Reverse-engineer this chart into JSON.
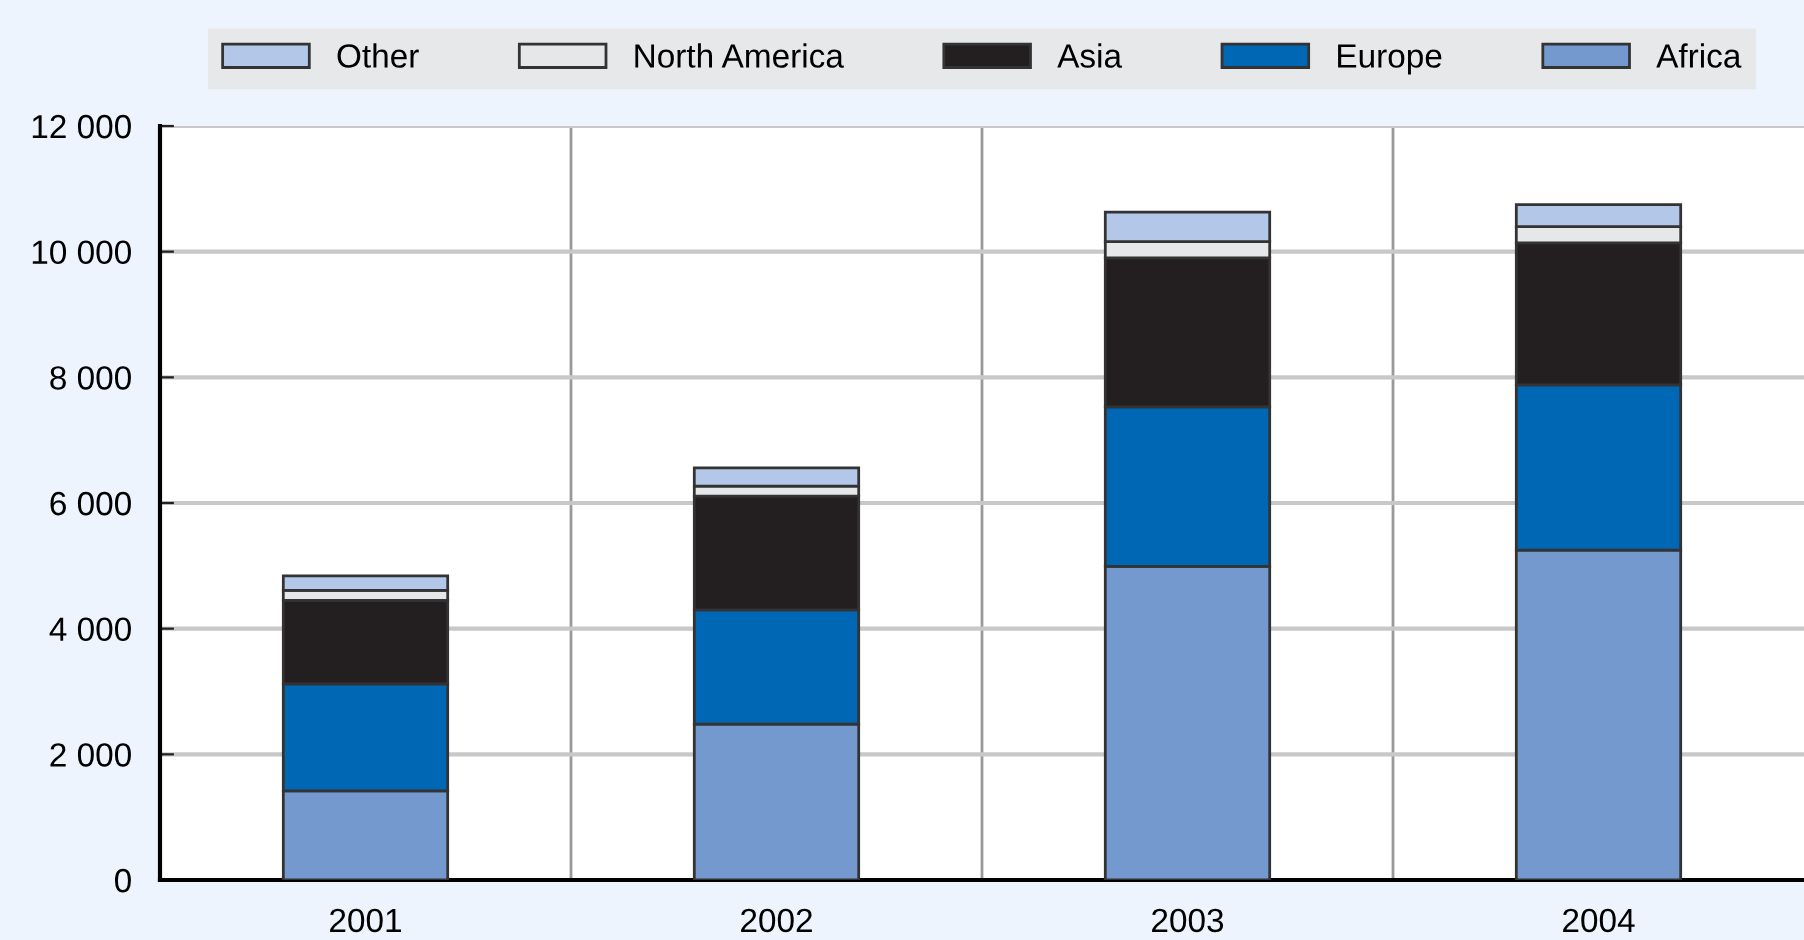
{
  "chart_data": {
    "type": "bar",
    "stacked": true,
    "categories": [
      "2001",
      "2002",
      "2003",
      "2004"
    ],
    "series": [
      {
        "name": "Africa",
        "color": "#7399cf",
        "values": [
          1420,
          2480,
          4990,
          5250
        ]
      },
      {
        "name": "Europe",
        "color": "#0067b4",
        "values": [
          1700,
          1820,
          2540,
          2630
        ]
      },
      {
        "name": "Asia",
        "color": "#231f20",
        "values": [
          1330,
          1810,
          2370,
          2260
        ]
      },
      {
        "name": "North America",
        "color": "#e6e7e8",
        "values": [
          160,
          160,
          260,
          260
        ]
      },
      {
        "name": "Other",
        "color": "#b3c7e8",
        "values": [
          230,
          290,
          470,
          350
        ]
      }
    ],
    "ylim": [
      0,
      12000
    ],
    "yticks": [
      0,
      {
        "value": 2000,
        "label": "2 000"
      },
      {
        "value": 4000,
        "label": "4 000"
      },
      {
        "value": 6000,
        "label": "6 000"
      },
      {
        "value": 8000,
        "label": "8 000"
      },
      {
        "value": 10000,
        "label": "10 000"
      },
      {
        "value": 12000,
        "label": "12 000"
      }
    ],
    "grid": true,
    "legend": "top"
  }
}
